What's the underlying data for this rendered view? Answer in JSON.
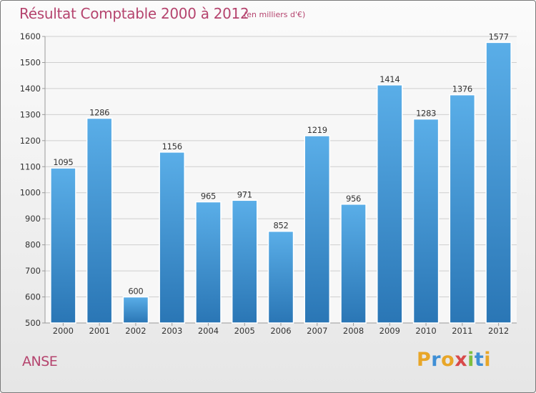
{
  "header": {
    "title": "Résultat Comptable 2000 à 2012",
    "unit": "(en milliers d'€)"
  },
  "footer": {
    "place": "ANSE",
    "logo_letters": [
      "P",
      "r",
      "o",
      "x",
      "i",
      "t",
      "i"
    ],
    "logo_colors": [
      "#e8a628",
      "#3f8fd5",
      "#e8a628",
      "#d84a4a",
      "#7fbf3f",
      "#3f8fd5",
      "#e8a628"
    ]
  },
  "colors": {
    "bar_top": "#5aaee8",
    "bar_bottom": "#2a76b5",
    "grid": "#cfcfcf",
    "axis": "#9a9a9a",
    "title": "#b5446e",
    "text": "#333333"
  },
  "chart_data": {
    "type": "bar",
    "title": "Résultat Comptable 2000 à 2012",
    "subtitle": "(en milliers d'€)",
    "categories": [
      "2000",
      "2001",
      "2002",
      "2003",
      "2004",
      "2005",
      "2006",
      "2007",
      "2008",
      "2009",
      "2010",
      "2011",
      "2012"
    ],
    "values": [
      1095,
      1286,
      600,
      1156,
      965,
      971,
      852,
      1219,
      956,
      1414,
      1283,
      1376,
      1577
    ],
    "ylim": [
      500,
      1600
    ],
    "yticks": [
      500,
      600,
      700,
      800,
      900,
      1000,
      1100,
      1200,
      1300,
      1400,
      1500,
      1600
    ],
    "xlabel": "",
    "ylabel": "",
    "grid": true,
    "legend": "none"
  }
}
